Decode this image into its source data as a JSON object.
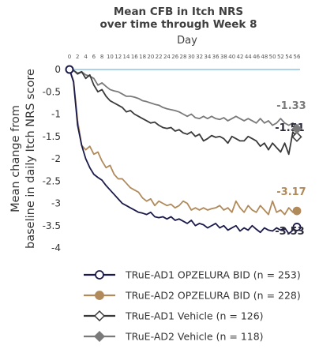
{
  "chart_data": {
    "type": "line",
    "title": [
      "Mean CFB in Itch NRS",
      "over time through Week 8"
    ],
    "xlabel": "Day",
    "ylabel": [
      "Mean change from",
      "baseline in daily Itch NRS score"
    ],
    "xlim": [
      0,
      56
    ],
    "ylim": [
      -4,
      0
    ],
    "x_ticks": [
      0,
      2,
      4,
      6,
      8,
      10,
      12,
      14,
      16,
      18,
      20,
      22,
      24,
      26,
      28,
      30,
      32,
      34,
      36,
      38,
      40,
      42,
      44,
      46,
      48,
      50,
      52,
      54,
      56
    ],
    "y_ticks": [
      0,
      -0.5,
      -1,
      -1.5,
      -2,
      -2.5,
      -3,
      -3.5,
      -4
    ],
    "x": [
      0,
      1,
      2,
      3,
      4,
      5,
      6,
      7,
      8,
      9,
      10,
      11,
      12,
      13,
      14,
      15,
      16,
      17,
      18,
      19,
      20,
      21,
      22,
      23,
      24,
      25,
      26,
      27,
      28,
      29,
      30,
      31,
      32,
      33,
      34,
      35,
      36,
      37,
      38,
      39,
      40,
      41,
      42,
      43,
      44,
      45,
      46,
      47,
      48,
      49,
      50,
      51,
      52,
      53,
      54,
      55,
      56
    ],
    "series": [
      {
        "name": "TRuE-AD1 OPZELURA BID (n = 253)",
        "color": "#1a1a4a",
        "marker": "circle-open",
        "end_label": "-3.53",
        "values": [
          0,
          -0.28,
          -1.25,
          -1.7,
          -2.0,
          -2.2,
          -2.35,
          -2.42,
          -2.48,
          -2.6,
          -2.7,
          -2.8,
          -2.9,
          -3.0,
          -3.05,
          -3.1,
          -3.15,
          -3.2,
          -3.22,
          -3.25,
          -3.2,
          -3.3,
          -3.32,
          -3.3,
          -3.35,
          -3.3,
          -3.38,
          -3.35,
          -3.4,
          -3.45,
          -3.38,
          -3.5,
          -3.45,
          -3.48,
          -3.55,
          -3.5,
          -3.45,
          -3.55,
          -3.5,
          -3.6,
          -3.55,
          -3.5,
          -3.62,
          -3.55,
          -3.6,
          -3.5,
          -3.58,
          -3.65,
          -3.55,
          -3.6,
          -3.62,
          -3.55,
          -3.6,
          -3.55,
          -3.68,
          -3.6,
          -3.53
        ]
      },
      {
        "name": "TRuE-AD2 OPZELURA BID (n = 228)",
        "color": "#b08a5a",
        "marker": "circle-filled",
        "end_label": "-3.17",
        "values": [
          0,
          -0.25,
          -1.15,
          -1.7,
          -1.8,
          -1.72,
          -1.9,
          -1.85,
          -2.05,
          -2.2,
          -2.15,
          -2.35,
          -2.45,
          -2.45,
          -2.55,
          -2.65,
          -2.7,
          -2.75,
          -2.88,
          -2.95,
          -2.9,
          -3.05,
          -2.95,
          -3.0,
          -3.05,
          -3.02,
          -3.1,
          -3.05,
          -2.95,
          -3.0,
          -3.15,
          -3.1,
          -3.15,
          -3.1,
          -3.15,
          -3.12,
          -3.1,
          -3.05,
          -3.15,
          -3.1,
          -3.2,
          -2.95,
          -3.1,
          -3.2,
          -3.05,
          -3.15,
          -3.2,
          -3.05,
          -3.15,
          -3.25,
          -2.95,
          -3.2,
          -3.15,
          -3.25,
          -3.1,
          -3.2,
          -3.17
        ]
      },
      {
        "name": "TRuE-AD1 Vehicle (n = 126)",
        "color": "#3a3a3a",
        "marker": "diamond-open",
        "end_label": "-1.51",
        "values": [
          0,
          -0.02,
          -0.1,
          -0.05,
          -0.2,
          -0.12,
          -0.35,
          -0.5,
          -0.45,
          -0.6,
          -0.7,
          -0.75,
          -0.8,
          -0.85,
          -0.95,
          -0.92,
          -1.0,
          -1.05,
          -1.1,
          -1.15,
          -1.2,
          -1.18,
          -1.25,
          -1.3,
          -1.32,
          -1.3,
          -1.38,
          -1.35,
          -1.42,
          -1.45,
          -1.4,
          -1.5,
          -1.45,
          -1.6,
          -1.55,
          -1.48,
          -1.52,
          -1.5,
          -1.55,
          -1.65,
          -1.5,
          -1.55,
          -1.6,
          -1.6,
          -1.5,
          -1.55,
          -1.6,
          -1.72,
          -1.65,
          -1.8,
          -1.65,
          -1.75,
          -1.85,
          -1.65,
          -1.9,
          -1.4,
          -1.51
        ]
      },
      {
        "name": "TRuE-AD2 Vehicle (n = 118)",
        "color": "#7a7a7a",
        "marker": "diamond-filled",
        "end_label": "-1.33",
        "values": [
          0,
          -0.02,
          -0.08,
          -0.05,
          -0.12,
          -0.15,
          -0.2,
          -0.35,
          -0.3,
          -0.38,
          -0.45,
          -0.48,
          -0.5,
          -0.55,
          -0.6,
          -0.6,
          -0.62,
          -0.65,
          -0.7,
          -0.72,
          -0.75,
          -0.78,
          -0.8,
          -0.85,
          -0.88,
          -0.9,
          -0.92,
          -0.95,
          -1.0,
          -1.05,
          -1.0,
          -1.08,
          -1.1,
          -1.05,
          -1.1,
          -1.05,
          -1.1,
          -1.12,
          -1.08,
          -1.15,
          -1.1,
          -1.05,
          -1.1,
          -1.15,
          -1.1,
          -1.15,
          -1.2,
          -1.1,
          -1.2,
          -1.15,
          -1.25,
          -1.2,
          -1.1,
          -1.2,
          -1.25,
          -1.2,
          -1.33
        ]
      }
    ],
    "legend_position": "bottom",
    "grid": false
  }
}
